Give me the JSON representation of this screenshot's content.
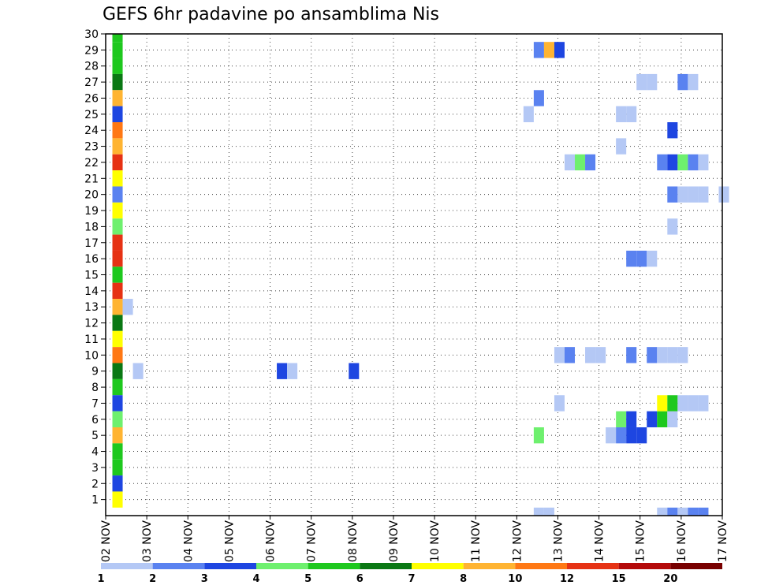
{
  "chart_data": {
    "type": "heatmap",
    "title": "GEFS 6hr padavine po ansamblima Nis",
    "x_tick_labels": [
      "02 NOV",
      "03 NOV",
      "04 NOV",
      "05 NOV",
      "06 NOV",
      "07 NOV",
      "08 NOV",
      "09 NOV",
      "10 NOV",
      "11 NOV",
      "12 NOV",
      "13 NOV",
      "14 NOV",
      "15 NOV",
      "16 NOV",
      "17 NOV"
    ],
    "y_tick_labels": [
      1,
      2,
      3,
      4,
      5,
      6,
      7,
      8,
      9,
      10,
      11,
      12,
      13,
      14,
      15,
      16,
      17,
      18,
      19,
      20,
      21,
      22,
      23,
      24,
      25,
      26,
      27,
      28,
      29,
      30
    ],
    "x_unit": "days since 02 NOV",
    "xlim": [
      0,
      15
    ],
    "ylim": [
      0,
      30
    ],
    "grid": true,
    "colorbar": {
      "labels": [
        "1",
        "2",
        "3",
        "4",
        "5",
        "6",
        "7",
        "8",
        "10",
        "12",
        "15",
        "20"
      ],
      "colors": [
        "#b4c8f5",
        "#5a82f0",
        "#1e46e1",
        "#6ef06e",
        "#1ec81e",
        "#0a7814",
        "#ffff00",
        "#ffb432",
        "#ff7814",
        "#e63214",
        "#b40a0a",
        "#780000"
      ]
    },
    "cells": [
      {
        "x": 0.25,
        "m": 30,
        "c": 5
      },
      {
        "x": 0.25,
        "m": 29,
        "c": 5
      },
      {
        "x": 0.25,
        "m": 28,
        "c": 5
      },
      {
        "x": 0.25,
        "m": 27,
        "c": 6
      },
      {
        "x": 0.25,
        "m": 26,
        "c": 8
      },
      {
        "x": 0.25,
        "m": 25,
        "c": 3
      },
      {
        "x": 0.25,
        "m": 24,
        "c": 9
      },
      {
        "x": 0.25,
        "m": 23,
        "c": 8
      },
      {
        "x": 0.25,
        "m": 22,
        "c": 10
      },
      {
        "x": 0.25,
        "m": 21,
        "c": 7
      },
      {
        "x": 0.25,
        "m": 20,
        "c": 2
      },
      {
        "x": 0.25,
        "m": 19,
        "c": 7
      },
      {
        "x": 0.25,
        "m": 18,
        "c": 4
      },
      {
        "x": 0.25,
        "m": 17,
        "c": 10
      },
      {
        "x": 0.25,
        "m": 16,
        "c": 10
      },
      {
        "x": 0.25,
        "m": 15,
        "c": 5
      },
      {
        "x": 0.25,
        "m": 14,
        "c": 10
      },
      {
        "x": 0.25,
        "m": 13,
        "c": 8
      },
      {
        "x": 0.25,
        "m": 12,
        "c": 6
      },
      {
        "x": 0.25,
        "m": 11,
        "c": 7
      },
      {
        "x": 0.25,
        "m": 10,
        "c": 9
      },
      {
        "x": 0.25,
        "m": 9,
        "c": 6
      },
      {
        "x": 0.25,
        "m": 8,
        "c": 5
      },
      {
        "x": 0.25,
        "m": 7,
        "c": 3
      },
      {
        "x": 0.25,
        "m": 6,
        "c": 4
      },
      {
        "x": 0.25,
        "m": 5,
        "c": 8
      },
      {
        "x": 0.25,
        "m": 4,
        "c": 5
      },
      {
        "x": 0.25,
        "m": 3,
        "c": 5
      },
      {
        "x": 0.25,
        "m": 2,
        "c": 3
      },
      {
        "x": 0.25,
        "m": 1,
        "c": 7
      },
      {
        "x": 0.5,
        "m": 13,
        "c": 1
      },
      {
        "x": 0.75,
        "m": 9,
        "c": 1
      },
      {
        "x": 4.25,
        "m": 9,
        "c": 3
      },
      {
        "x": 4.5,
        "m": 9,
        "c": 1
      },
      {
        "x": 6,
        "m": 9,
        "c": 3
      },
      {
        "x": 10.25,
        "m": 25,
        "c": 1
      },
      {
        "x": 10.5,
        "m": 29,
        "c": 2
      },
      {
        "x": 10.75,
        "m": 29,
        "c": 8
      },
      {
        "x": 11,
        "m": 29,
        "c": 3
      },
      {
        "x": 10.5,
        "m": 26,
        "c": 2
      },
      {
        "x": 10.5,
        "m": 5,
        "c": 4
      },
      {
        "x": 10.5,
        "m": 0,
        "c": 1
      },
      {
        "x": 10.75,
        "m": 0,
        "c": 1
      },
      {
        "x": 11,
        "m": 10,
        "c": 1
      },
      {
        "x": 11.25,
        "m": 10,
        "c": 2
      },
      {
        "x": 11,
        "m": 7,
        "c": 1
      },
      {
        "x": 11.25,
        "m": 22,
        "c": 1
      },
      {
        "x": 11.5,
        "m": 22,
        "c": 4
      },
      {
        "x": 11.75,
        "m": 22,
        "c": 2
      },
      {
        "x": 11.75,
        "m": 10,
        "c": 1
      },
      {
        "x": 12,
        "m": 10,
        "c": 1
      },
      {
        "x": 12.25,
        "m": 5,
        "c": 1
      },
      {
        "x": 12.5,
        "m": 5,
        "c": 2
      },
      {
        "x": 12.75,
        "m": 5,
        "c": 3
      },
      {
        "x": 13,
        "m": 5,
        "c": 3
      },
      {
        "x": 12.5,
        "m": 6,
        "c": 4
      },
      {
        "x": 12.75,
        "m": 6,
        "c": 3
      },
      {
        "x": 13.25,
        "m": 6,
        "c": 3
      },
      {
        "x": 13.5,
        "m": 6,
        "c": 5
      },
      {
        "x": 13.75,
        "m": 6,
        "c": 1
      },
      {
        "x": 12.5,
        "m": 23,
        "c": 1
      },
      {
        "x": 12.5,
        "m": 25,
        "c": 1
      },
      {
        "x": 12.75,
        "m": 25,
        "c": 1
      },
      {
        "x": 12.75,
        "m": 16,
        "c": 2
      },
      {
        "x": 13,
        "m": 16,
        "c": 2
      },
      {
        "x": 13.25,
        "m": 16,
        "c": 1
      },
      {
        "x": 12.75,
        "m": 10,
        "c": 2
      },
      {
        "x": 13.25,
        "m": 10,
        "c": 2
      },
      {
        "x": 13.5,
        "m": 10,
        "c": 1
      },
      {
        "x": 13.75,
        "m": 10,
        "c": 1
      },
      {
        "x": 13,
        "m": 27,
        "c": 1
      },
      {
        "x": 13.25,
        "m": 27,
        "c": 1
      },
      {
        "x": 13.5,
        "m": 22,
        "c": 2
      },
      {
        "x": 13.75,
        "m": 22,
        "c": 3
      },
      {
        "x": 14,
        "m": 22,
        "c": 4
      },
      {
        "x": 14.25,
        "m": 22,
        "c": 2
      },
      {
        "x": 14.5,
        "m": 22,
        "c": 1
      },
      {
        "x": 13.5,
        "m": 7,
        "c": 7
      },
      {
        "x": 13.75,
        "m": 7,
        "c": 5
      },
      {
        "x": 14,
        "m": 7,
        "c": 1
      },
      {
        "x": 14.25,
        "m": 7,
        "c": 1
      },
      {
        "x": 14.5,
        "m": 7,
        "c": 1
      },
      {
        "x": 13.5,
        "m": 0,
        "c": 1
      },
      {
        "x": 13.75,
        "m": 0,
        "c": 2
      },
      {
        "x": 14,
        "m": 0,
        "c": 1
      },
      {
        "x": 14.25,
        "m": 0,
        "c": 2
      },
      {
        "x": 14.5,
        "m": 0,
        "c": 2
      },
      {
        "x": 13.75,
        "m": 24,
        "c": 3
      },
      {
        "x": 13.75,
        "m": 20,
        "c": 2
      },
      {
        "x": 14,
        "m": 20,
        "c": 1
      },
      {
        "x": 14.25,
        "m": 20,
        "c": 1
      },
      {
        "x": 14.5,
        "m": 20,
        "c": 1
      },
      {
        "x": 15,
        "m": 20,
        "c": 1
      },
      {
        "x": 13.75,
        "m": 18,
        "c": 1
      },
      {
        "x": 14,
        "m": 10,
        "c": 1
      },
      {
        "x": 14,
        "m": 27,
        "c": 2
      },
      {
        "x": 14.25,
        "m": 27,
        "c": 1
      }
    ]
  }
}
